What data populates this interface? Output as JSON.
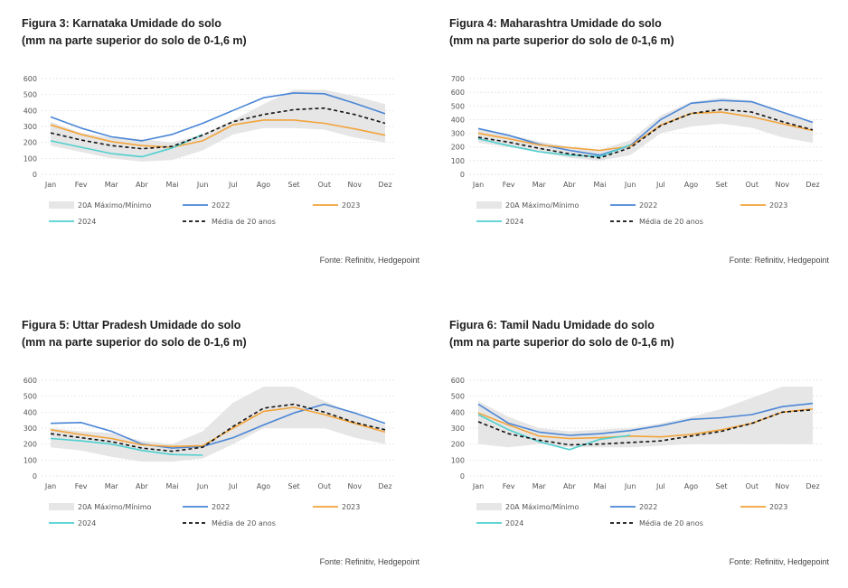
{
  "colors": {
    "band": "#e6e6e6",
    "s2022": "#4a86d6",
    "s2023": "#f2a33a",
    "s2024": "#4fcfcf",
    "avg": "#111111",
    "grid": "#dddddd"
  },
  "charts": [
    {
      "title_line1": "Figura 3: Karnataka Umidade do solo",
      "title_line2": "(mm na parte superior do solo de 0-1,6 m)",
      "source": "Fonte: Refinitiv, Hedgepoint",
      "legend": {
        "band": "20A Máximo/Mínimo",
        "s2022": "2022",
        "s2023": "2023",
        "s2024": "2024",
        "avg": "Média de 20 anos"
      }
    },
    {
      "title_line1": "Figura 4: Maharashtra Umidade do solo",
      "title_line2": "(mm na parte superior do solo de 0-1,6 m)",
      "source": "Fonte: Refinitiv, Hedgepoint",
      "legend": {
        "band": "20A Máximo/Mínimo",
        "s2022": "2022",
        "s2023": "2023",
        "s2024": "2024",
        "avg": "Média de 20 anos"
      }
    },
    {
      "title_line1": "Figura 5: Uttar Pradesh Umidade do solo",
      "title_line2": "(mm na parte superior do solo de 0-1,6 m)",
      "source": "Fonte: Refinitiv, Hedgepoint",
      "legend": {
        "band": "20A Máximo/Mínimo",
        "s2022": "2022",
        "s2023": "2023",
        "s2024": "2024",
        "avg": "Média de 20 anos"
      }
    },
    {
      "title_line1": "Figura 6: Tamil Nadu Umidade do solo",
      "title_line2": "(mm na parte superior do solo de 0-1,6 m)",
      "source": "Fonte: Refinitiv, Hedgepoint",
      "legend": {
        "band": "20A Máximo/Mínimo",
        "s2022": "2022",
        "s2023": "2023",
        "s2024": "2024",
        "avg": "Média de 20 anos"
      }
    }
  ],
  "chart_data": [
    {
      "type": "line",
      "categories": [
        "Jan",
        "Fev",
        "Mar",
        "Abr",
        "Mai",
        "Jun",
        "Jul",
        "Ago",
        "Set",
        "Out",
        "Nov",
        "Dez"
      ],
      "ylim": [
        0,
        600
      ],
      "yticks": [
        0,
        100,
        200,
        300,
        400,
        500,
        600
      ],
      "band_max": [
        330,
        260,
        230,
        220,
        200,
        250,
        340,
        440,
        530,
        530,
        490,
        440
      ],
      "band_min": [
        180,
        140,
        100,
        80,
        90,
        150,
        250,
        290,
        290,
        280,
        230,
        200
      ],
      "series": [
        {
          "name": "2022",
          "key": "s2022",
          "values": [
            360,
            290,
            235,
            210,
            250,
            320,
            400,
            480,
            510,
            505,
            445,
            380
          ]
        },
        {
          "name": "2023",
          "key": "s2023",
          "values": [
            310,
            250,
            205,
            180,
            170,
            210,
            310,
            340,
            340,
            320,
            285,
            245
          ]
        },
        {
          "name": "2024",
          "key": "s2024",
          "values": [
            210,
            170,
            130,
            110,
            165,
            250,
            null,
            null,
            null,
            null,
            null,
            null
          ]
        },
        {
          "name": "Média de 20 anos",
          "key": "avg",
          "dashed": true,
          "values": [
            260,
            215,
            180,
            160,
            175,
            245,
            330,
            375,
            405,
            415,
            375,
            320
          ]
        }
      ]
    },
    {
      "type": "line",
      "categories": [
        "Jan",
        "Fev",
        "Mar",
        "Abr",
        "Mai",
        "Jun",
        "Jul",
        "Ago",
        "Set",
        "Out",
        "Nov",
        "Dez"
      ],
      "ylim": [
        0,
        700
      ],
      "yticks": [
        0,
        100,
        200,
        300,
        400,
        500,
        600,
        700
      ],
      "band_max": [
        330,
        290,
        240,
        200,
        180,
        250,
        430,
        530,
        560,
        540,
        460,
        380
      ],
      "band_min": [
        230,
        200,
        160,
        120,
        100,
        140,
        300,
        350,
        370,
        340,
        270,
        230
      ],
      "series": [
        {
          "name": "2022",
          "key": "s2022",
          "values": [
            335,
            285,
            220,
            175,
            140,
            210,
            400,
            520,
            540,
            530,
            455,
            380
          ]
        },
        {
          "name": "2023",
          "key": "s2023",
          "values": [
            300,
            260,
            215,
            195,
            175,
            205,
            360,
            445,
            455,
            420,
            370,
            320
          ]
        },
        {
          "name": "2024",
          "key": "s2024",
          "values": [
            260,
            210,
            165,
            140,
            130,
            215,
            null,
            null,
            null,
            null,
            null,
            null
          ]
        },
        {
          "name": "Média de 20 anos",
          "key": "avg",
          "dashed": true,
          "values": [
            270,
            235,
            190,
            150,
            120,
            195,
            355,
            445,
            475,
            455,
            385,
            325
          ]
        }
      ]
    },
    {
      "type": "line",
      "categories": [
        "Jan",
        "Fev",
        "Mar",
        "Abr",
        "Mai",
        "Jun",
        "Jul",
        "Ago",
        "Set",
        "Out",
        "Nov",
        "Dez"
      ],
      "ylim": [
        0,
        600
      ],
      "yticks": [
        0,
        100,
        200,
        300,
        400,
        500,
        600
      ],
      "band_max": [
        300,
        280,
        270,
        220,
        200,
        280,
        460,
        560,
        560,
        470,
        390,
        320
      ],
      "band_min": [
        180,
        160,
        120,
        90,
        90,
        110,
        200,
        300,
        300,
        300,
        240,
        200
      ],
      "series": [
        {
          "name": "2022",
          "key": "s2022",
          "values": [
            330,
            335,
            280,
            200,
            175,
            185,
            240,
            320,
            395,
            450,
            395,
            330
          ]
        },
        {
          "name": "2023",
          "key": "s2023",
          "values": [
            290,
            260,
            235,
            195,
            185,
            190,
            300,
            405,
            430,
            385,
            330,
            275
          ]
        },
        {
          "name": "2024",
          "key": "s2024",
          "values": [
            235,
            220,
            200,
            160,
            135,
            130,
            null,
            null,
            null,
            null,
            null,
            null
          ]
        },
        {
          "name": "Média de 20 anos",
          "key": "avg",
          "dashed": true,
          "values": [
            265,
            240,
            215,
            175,
            155,
            180,
            310,
            425,
            450,
            400,
            335,
            290
          ]
        }
      ]
    },
    {
      "type": "line",
      "categories": [
        "Jan",
        "Fev",
        "Mar",
        "Abr",
        "Mai",
        "Jun",
        "Jul",
        "Ago",
        "Set",
        "Out",
        "Nov",
        "Dez"
      ],
      "ylim": [
        0,
        600
      ],
      "yticks": [
        0,
        100,
        200,
        300,
        400,
        500,
        600
      ],
      "band_max": [
        470,
        370,
        300,
        280,
        290,
        300,
        330,
        370,
        420,
        490,
        560,
        560
      ],
      "band_min": [
        200,
        180,
        200,
        180,
        180,
        180,
        190,
        200,
        200,
        200,
        200,
        200
      ],
      "series": [
        {
          "name": "2022",
          "key": "s2022",
          "values": [
            450,
            330,
            275,
            255,
            265,
            285,
            315,
            355,
            365,
            385,
            435,
            455
          ]
        },
        {
          "name": "2023",
          "key": "s2023",
          "values": [
            395,
            320,
            250,
            235,
            240,
            250,
            245,
            260,
            290,
            330,
            400,
            420
          ]
        },
        {
          "name": "2024",
          "key": "s2024",
          "values": [
            385,
            290,
            215,
            165,
            230,
            255,
            null,
            null,
            null,
            null,
            null,
            null
          ]
        },
        {
          "name": "Média de 20 anos",
          "key": "avg",
          "dashed": true,
          "values": [
            340,
            265,
            225,
            195,
            200,
            210,
            220,
            250,
            280,
            330,
            400,
            415
          ]
        }
      ]
    }
  ]
}
